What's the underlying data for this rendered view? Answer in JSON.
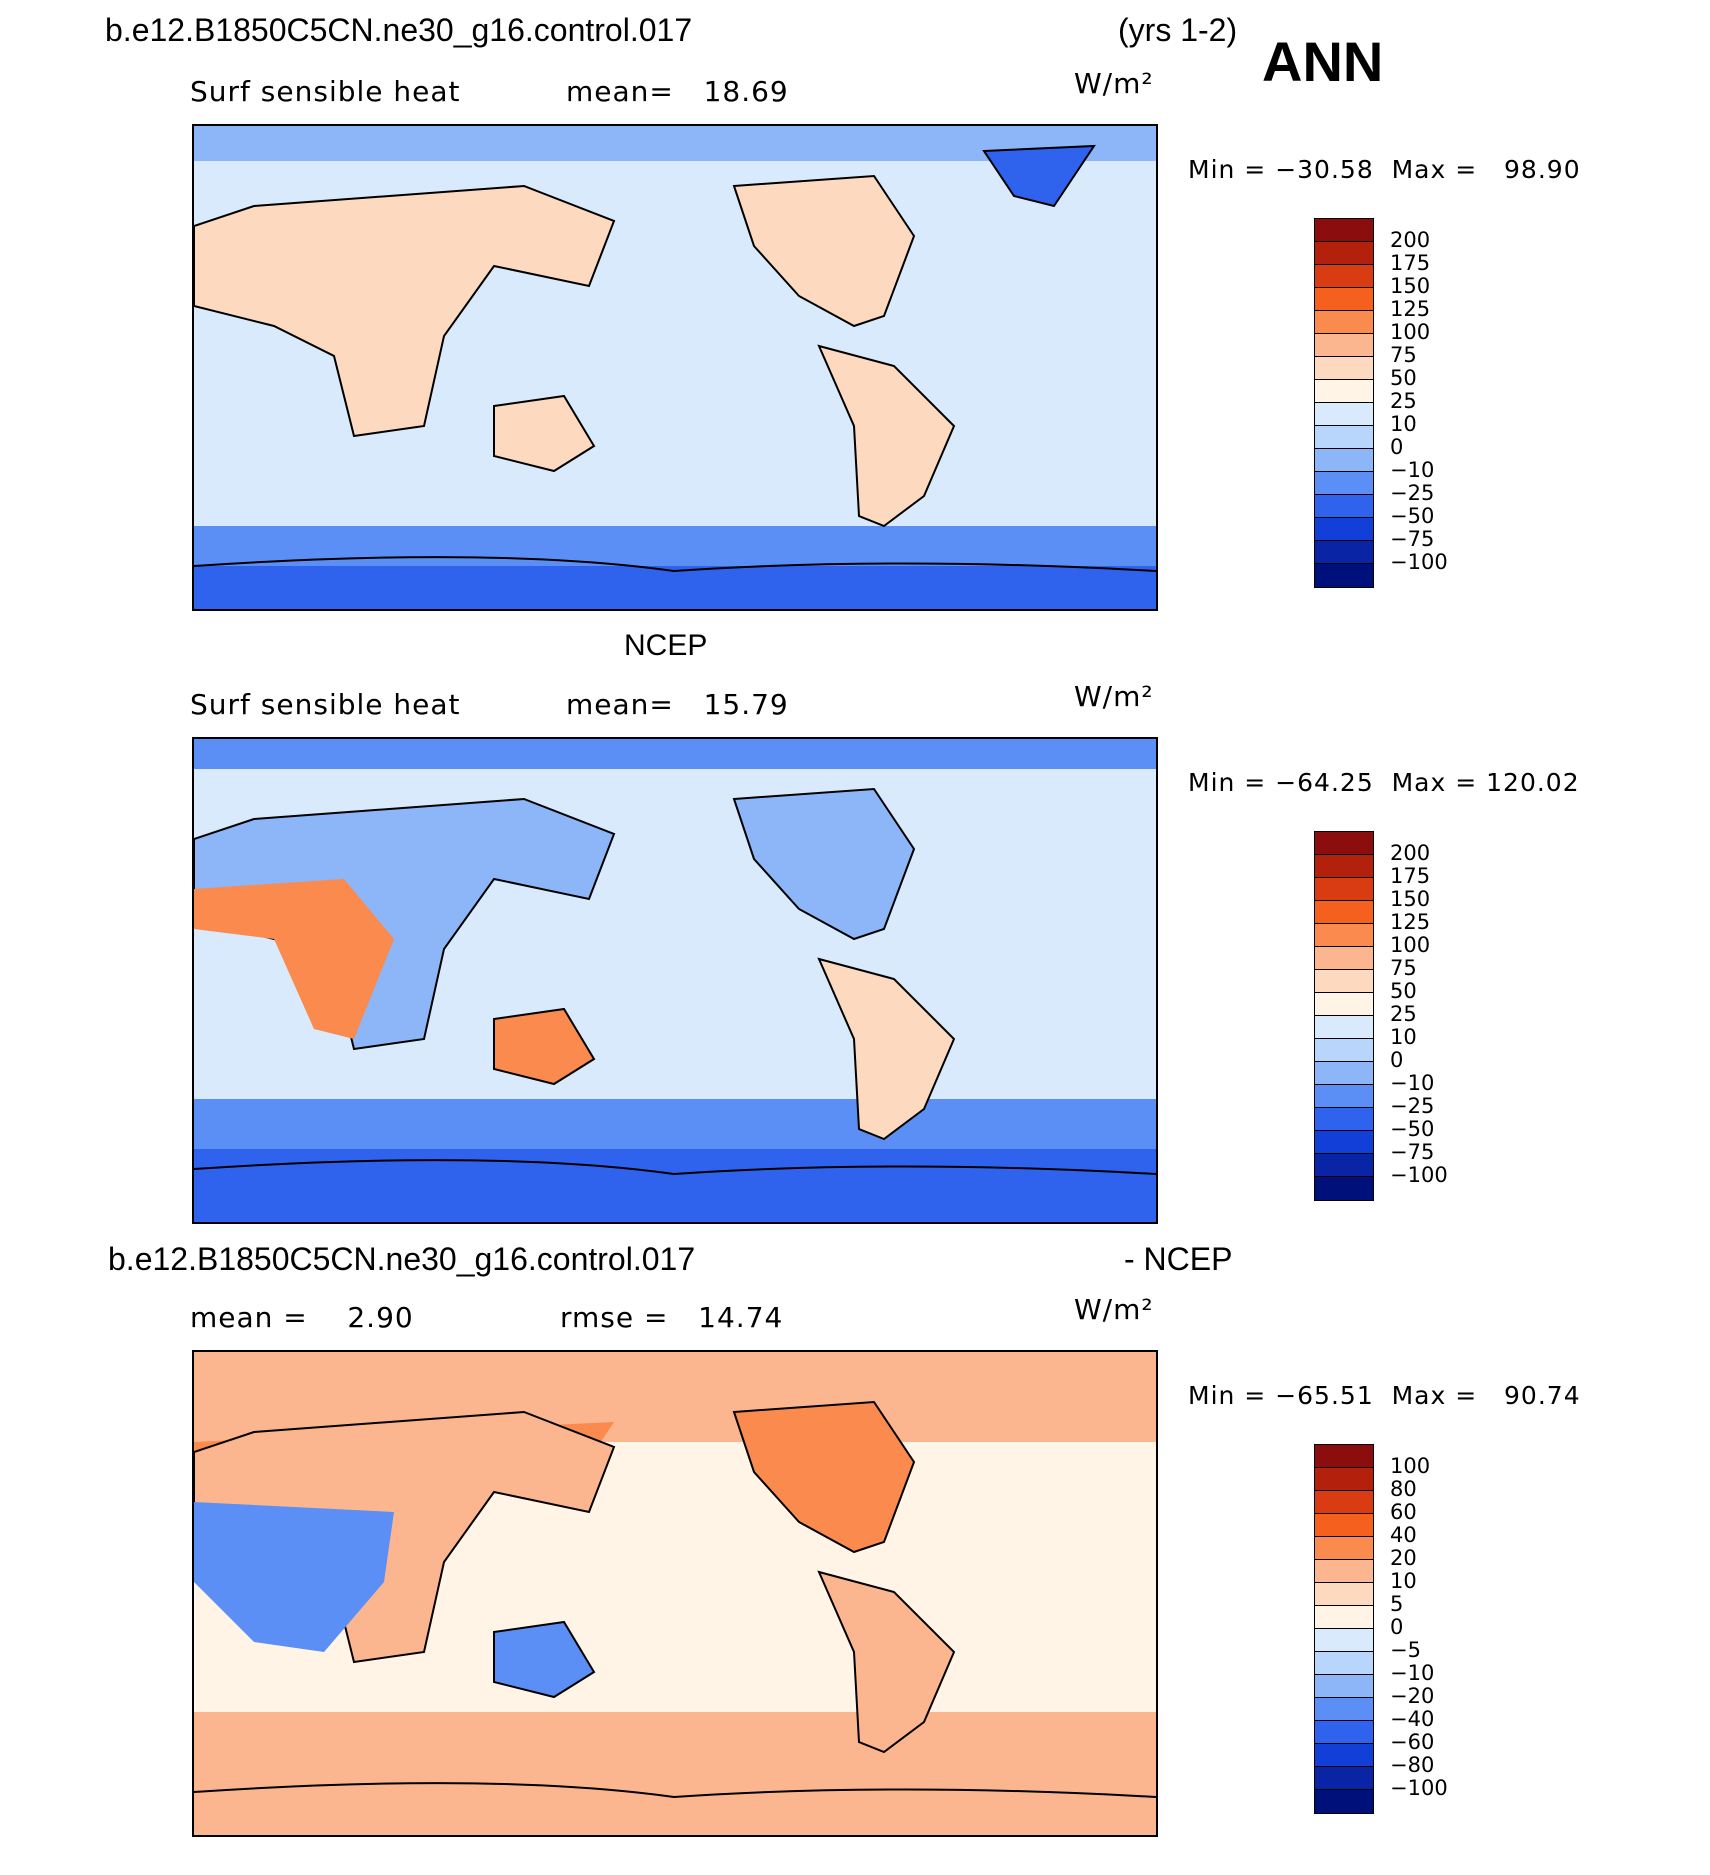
{
  "header": {
    "case": "b.e12.B1850C5CN.ne30_g16.control.017",
    "years": "(yrs 1-2)",
    "season": "ANN"
  },
  "panels": [
    {
      "title": "",
      "variable": "Surf sensible heat",
      "stat1": "mean=   18.69",
      "stat2": "",
      "units": "W/m²",
      "minmax": "Min = −30.58  Max =   98.90",
      "colors": [
        "#8c0d0d",
        "#b3200c",
        "#d93b12",
        "#f5601e",
        "#fa8a4d",
        "#fcb68f",
        "#fdd9c0",
        "#fff4e6",
        "#d8eafc",
        "#b8d5fb",
        "#8cb6f7",
        "#5c8ff5",
        "#2f63ee",
        "#123fd8",
        "#0a24a6",
        "#00107a"
      ],
      "labels": [
        "200",
        "175",
        "150",
        "125",
        "100",
        "75",
        "50",
        "25",
        "10",
        "0",
        "−10",
        "−25",
        "−50",
        "−75",
        "−100"
      ]
    },
    {
      "title": "NCEP",
      "variable": "Surf sensible heat",
      "stat1": "mean=   15.79",
      "stat2": "",
      "units": "W/m²",
      "minmax": "Min = −64.25  Max = 120.02",
      "colors": [
        "#8c0d0d",
        "#b3200c",
        "#d93b12",
        "#f5601e",
        "#fa8a4d",
        "#fcb68f",
        "#fdd9c0",
        "#fff4e6",
        "#d8eafc",
        "#b8d5fb",
        "#8cb6f7",
        "#5c8ff5",
        "#2f63ee",
        "#123fd8",
        "#0a24a6",
        "#00107a"
      ],
      "labels": [
        "200",
        "175",
        "150",
        "125",
        "100",
        "75",
        "50",
        "25",
        "10",
        "0",
        "−10",
        "−25",
        "−50",
        "−75",
        "−100"
      ]
    },
    {
      "title": "b.e12.B1850C5CN.ne30_g16.control.017",
      "title_right": "- NCEP",
      "variable": "",
      "stat1": "mean =    2.90",
      "stat2": "rmse =   14.74",
      "units": "W/m²",
      "minmax": "Min = −65.51  Max =   90.74",
      "colors": [
        "#8c0d0d",
        "#b3200c",
        "#d93b12",
        "#f5601e",
        "#fa8a4d",
        "#fcb68f",
        "#fdd9c0",
        "#fff4e6",
        "#d8eafc",
        "#b8d5fb",
        "#8cb6f7",
        "#5c8ff5",
        "#2f63ee",
        "#123fd8",
        "#0a24a6",
        "#00107a"
      ],
      "labels": [
        "100",
        "80",
        "60",
        "40",
        "20",
        "10",
        "5",
        "0",
        "−5",
        "−10",
        "−20",
        "−40",
        "−60",
        "−80",
        "−100"
      ]
    }
  ]
}
